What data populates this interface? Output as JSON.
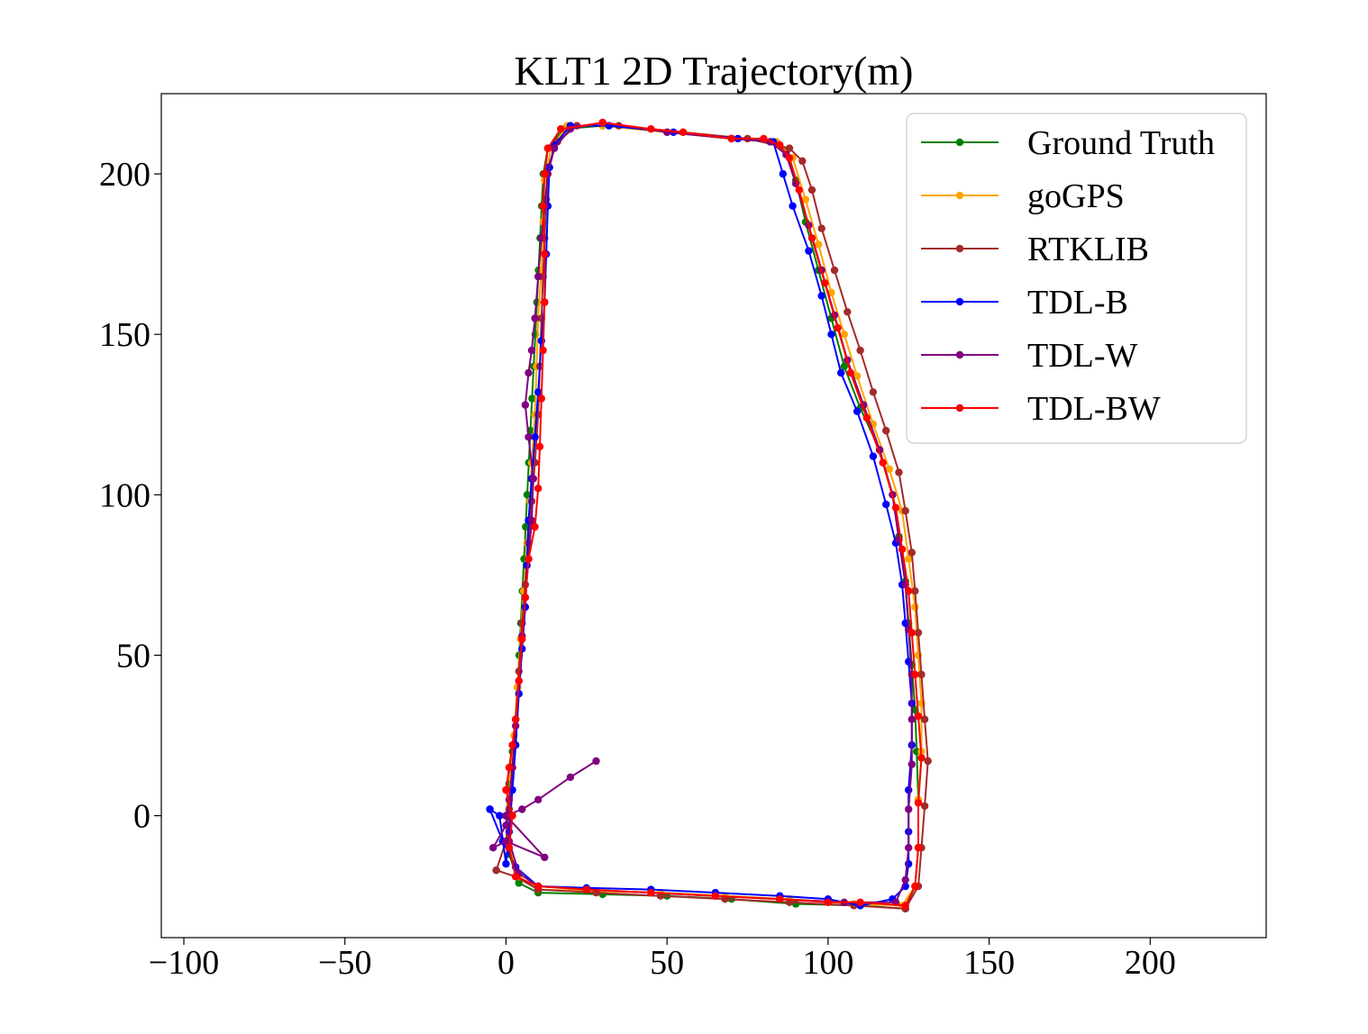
{
  "chart_data": {
    "type": "line",
    "title": "KLT1 2D Trajectory(m)",
    "xlabel": "",
    "ylabel": "",
    "xlim": [
      -107,
      236
    ],
    "ylim": [
      -38,
      225
    ],
    "xticks": [
      -100,
      -50,
      0,
      50,
      100,
      150,
      200
    ],
    "xtick_labels": [
      "−100",
      "−50",
      "0",
      "50",
      "100",
      "150",
      "200"
    ],
    "yticks": [
      0,
      50,
      100,
      150,
      200
    ],
    "ytick_labels": [
      "0",
      "50",
      "100",
      "150",
      "200"
    ],
    "grid": false,
    "legend_position": "upper-right",
    "series": [
      {
        "name": "Ground Truth",
        "color": "#008000",
        "points": [
          [
            0,
            0
          ],
          [
            1,
            10
          ],
          [
            2,
            20
          ],
          [
            3,
            30
          ],
          [
            3.6,
            40
          ],
          [
            4.1,
            50
          ],
          [
            4.6,
            60
          ],
          [
            5.1,
            70
          ],
          [
            5.6,
            80
          ],
          [
            6.1,
            90
          ],
          [
            6.6,
            100
          ],
          [
            7.1,
            110
          ],
          [
            7.6,
            120
          ],
          [
            8.1,
            130
          ],
          [
            8.6,
            140
          ],
          [
            9.1,
            150
          ],
          [
            9.6,
            160
          ],
          [
            10.1,
            170
          ],
          [
            10.6,
            180
          ],
          [
            11.1,
            190
          ],
          [
            11.6,
            200
          ],
          [
            13,
            208
          ],
          [
            18,
            214
          ],
          [
            30,
            215
          ],
          [
            50,
            213
          ],
          [
            70,
            211
          ],
          [
            82,
            210
          ],
          [
            87,
            207
          ],
          [
            90,
            198
          ],
          [
            93,
            185
          ],
          [
            97,
            170
          ],
          [
            101,
            155
          ],
          [
            105,
            140
          ],
          [
            110,
            127
          ],
          [
            116,
            114
          ],
          [
            120,
            100
          ],
          [
            122,
            87
          ],
          [
            124,
            73
          ],
          [
            125,
            60
          ],
          [
            126,
            47
          ],
          [
            127,
            33
          ],
          [
            127.5,
            20
          ],
          [
            128,
            5
          ],
          [
            128,
            -10
          ],
          [
            127,
            -22
          ],
          [
            124,
            -29
          ],
          [
            110,
            -28
          ],
          [
            90,
            -27.5
          ],
          [
            70,
            -26
          ],
          [
            50,
            -25
          ],
          [
            30,
            -24.5
          ],
          [
            10,
            -24
          ],
          [
            4,
            -21
          ],
          [
            1,
            -12
          ],
          [
            0,
            0
          ]
        ]
      },
      {
        "name": "goGPS",
        "color": "#FFA500",
        "points": [
          [
            0,
            0
          ],
          [
            1.5,
            12
          ],
          [
            2.5,
            25
          ],
          [
            3.5,
            40
          ],
          [
            4.5,
            55
          ],
          [
            5.5,
            70
          ],
          [
            6.5,
            85
          ],
          [
            7.5,
            98
          ],
          [
            8,
            110
          ],
          [
            9,
            125
          ],
          [
            9.5,
            140
          ],
          [
            10,
            155
          ],
          [
            11,
            170
          ],
          [
            11.5,
            185
          ],
          [
            12,
            198
          ],
          [
            14,
            208
          ],
          [
            19,
            215
          ],
          [
            30,
            215
          ],
          [
            50,
            213
          ],
          [
            70,
            211
          ],
          [
            84,
            210
          ],
          [
            89,
            205
          ],
          [
            93,
            192
          ],
          [
            97,
            178
          ],
          [
            101,
            163
          ],
          [
            105,
            150
          ],
          [
            109,
            137
          ],
          [
            114,
            122
          ],
          [
            119,
            108
          ],
          [
            123,
            95
          ],
          [
            125,
            80
          ],
          [
            127,
            65
          ],
          [
            128,
            50
          ],
          [
            129,
            35
          ],
          [
            129,
            20
          ],
          [
            128,
            5
          ],
          [
            128,
            -10
          ],
          [
            127,
            -22
          ],
          [
            123,
            -28
          ],
          [
            108,
            -27.5
          ],
          [
            88,
            -26
          ],
          [
            68,
            -25
          ],
          [
            48,
            -24
          ],
          [
            28,
            -23.5
          ],
          [
            10,
            -23
          ],
          [
            4,
            -19
          ],
          [
            1,
            -10
          ],
          [
            0,
            0
          ]
        ]
      },
      {
        "name": "RTKLIB",
        "color": "#A52A2A",
        "points": [
          [
            -3,
            -17
          ],
          [
            0,
            -8
          ],
          [
            1,
            2
          ],
          [
            2,
            15
          ],
          [
            3,
            30
          ],
          [
            4,
            45
          ],
          [
            5,
            60
          ],
          [
            6,
            72
          ],
          [
            7,
            85
          ],
          [
            8,
            98
          ],
          [
            9,
            110
          ],
          [
            10,
            125
          ],
          [
            10.5,
            140
          ],
          [
            11,
            155
          ],
          [
            11.5,
            168
          ],
          [
            12,
            180
          ],
          [
            12.5,
            192
          ],
          [
            13,
            202
          ],
          [
            16,
            210
          ],
          [
            22,
            215
          ],
          [
            35,
            215
          ],
          [
            55,
            213
          ],
          [
            75,
            211
          ],
          [
            88,
            208
          ],
          [
            92,
            204
          ],
          [
            95,
            195
          ],
          [
            98,
            183
          ],
          [
            102,
            170
          ],
          [
            106,
            157
          ],
          [
            110,
            145
          ],
          [
            114,
            132
          ],
          [
            118,
            120
          ],
          [
            122,
            107
          ],
          [
            124,
            95
          ],
          [
            126,
            82
          ],
          [
            127,
            70
          ],
          [
            128,
            57
          ],
          [
            129,
            44
          ],
          [
            130,
            30
          ],
          [
            131,
            17
          ],
          [
            130,
            3
          ],
          [
            129,
            -10
          ],
          [
            128,
            -22
          ],
          [
            124,
            -29
          ],
          [
            108,
            -28
          ],
          [
            88,
            -27
          ],
          [
            68,
            -26
          ],
          [
            48,
            -25
          ],
          [
            28,
            -24
          ],
          [
            10,
            -23
          ],
          [
            3,
            -19
          ],
          [
            -3,
            -17
          ]
        ]
      },
      {
        "name": "TDL-B",
        "color": "#0000FF",
        "points": [
          [
            -5,
            2
          ],
          [
            -2,
            0
          ],
          [
            0,
            -15
          ],
          [
            1,
            -5
          ],
          [
            2,
            8
          ],
          [
            3,
            22
          ],
          [
            4,
            38
          ],
          [
            5,
            52
          ],
          [
            6,
            65
          ],
          [
            6.5,
            78
          ],
          [
            7,
            92
          ],
          [
            8,
            105
          ],
          [
            9,
            118
          ],
          [
            10,
            132
          ],
          [
            11,
            148
          ],
          [
            12,
            160
          ],
          [
            12.5,
            175
          ],
          [
            13,
            190
          ],
          [
            13.5,
            202
          ],
          [
            15,
            209
          ],
          [
            20,
            215
          ],
          [
            32,
            215
          ],
          [
            52,
            213
          ],
          [
            72,
            211
          ],
          [
            83,
            210
          ],
          [
            86,
            200
          ],
          [
            89,
            190
          ],
          [
            94,
            176
          ],
          [
            98,
            162
          ],
          [
            101,
            150
          ],
          [
            104,
            138
          ],
          [
            109,
            126
          ],
          [
            114,
            112
          ],
          [
            118,
            97
          ],
          [
            121,
            85
          ],
          [
            123,
            72
          ],
          [
            124,
            60
          ],
          [
            125,
            48
          ],
          [
            126,
            35
          ],
          [
            126,
            22
          ],
          [
            125,
            8
          ],
          [
            125,
            -5
          ],
          [
            125,
            -15
          ],
          [
            124,
            -22
          ],
          [
            120,
            -26
          ],
          [
            110,
            -28
          ],
          [
            100,
            -26
          ],
          [
            85,
            -25
          ],
          [
            65,
            -24
          ],
          [
            45,
            -23
          ],
          [
            25,
            -22.5
          ],
          [
            10,
            -22
          ],
          [
            3,
            -16
          ],
          [
            -1,
            -8
          ],
          [
            -5,
            2
          ]
        ]
      },
      {
        "name": "TDL-W",
        "color": "#800080",
        "points": [
          [
            28,
            17
          ],
          [
            20,
            12
          ],
          [
            10,
            5
          ],
          [
            5,
            2
          ],
          [
            0,
            0
          ],
          [
            12,
            -13
          ],
          [
            0,
            -8
          ],
          [
            -4,
            -10
          ],
          [
            0,
            -3
          ],
          [
            1,
            5
          ],
          [
            2,
            15
          ],
          [
            3,
            28
          ],
          [
            4,
            42
          ],
          [
            5,
            56
          ],
          [
            6,
            68
          ],
          [
            7,
            80
          ],
          [
            8,
            92
          ],
          [
            8.5,
            105
          ],
          [
            7,
            118
          ],
          [
            6,
            128
          ],
          [
            7,
            138
          ],
          [
            8,
            145
          ],
          [
            9,
            155
          ],
          [
            10,
            168
          ],
          [
            11,
            180
          ],
          [
            12,
            190
          ],
          [
            13,
            200
          ],
          [
            15,
            208
          ],
          [
            20,
            214
          ],
          [
            30,
            216
          ],
          [
            50,
            213
          ],
          [
            70,
            211
          ],
          [
            82,
            210
          ],
          [
            87,
            206
          ],
          [
            90,
            197
          ],
          [
            94,
            184
          ],
          [
            98,
            170
          ],
          [
            102,
            156
          ],
          [
            106,
            142
          ],
          [
            111,
            128
          ],
          [
            116,
            114
          ],
          [
            120,
            100
          ],
          [
            122,
            86
          ],
          [
            124,
            72
          ],
          [
            125,
            58
          ],
          [
            126,
            44
          ],
          [
            126,
            30
          ],
          [
            126,
            16
          ],
          [
            125,
            2
          ],
          [
            125,
            -10
          ],
          [
            124,
            -20
          ],
          [
            121,
            -27
          ],
          [
            105,
            -27
          ],
          [
            85,
            -26
          ],
          [
            65,
            -25
          ],
          [
            45,
            -24
          ],
          [
            25,
            -23
          ],
          [
            10,
            -22
          ],
          [
            4,
            -18
          ],
          [
            1,
            -8
          ],
          [
            0,
            0
          ]
        ]
      },
      {
        "name": "TDL-BW",
        "color": "#FF0000",
        "points": [
          [
            0,
            8
          ],
          [
            1,
            15
          ],
          [
            2,
            22
          ],
          [
            3,
            30
          ],
          [
            4,
            42
          ],
          [
            5,
            55
          ],
          [
            6,
            68
          ],
          [
            7,
            80
          ],
          [
            9,
            90
          ],
          [
            10,
            102
          ],
          [
            10.5,
            115
          ],
          [
            11,
            130
          ],
          [
            11.5,
            145
          ],
          [
            12,
            160
          ],
          [
            12,
            175
          ],
          [
            11.5,
            190
          ],
          [
            12,
            200
          ],
          [
            13,
            208
          ],
          [
            17,
            214
          ],
          [
            30,
            216
          ],
          [
            45,
            214
          ],
          [
            55,
            213
          ],
          [
            70,
            211
          ],
          [
            80,
            211
          ],
          [
            85,
            209
          ],
          [
            88,
            205
          ],
          [
            91,
            195
          ],
          [
            95,
            180
          ],
          [
            99,
            166
          ],
          [
            103,
            152
          ],
          [
            107,
            138
          ],
          [
            112,
            124
          ],
          [
            117,
            110
          ],
          [
            121,
            96
          ],
          [
            123,
            83
          ],
          [
            125,
            70
          ],
          [
            126,
            57
          ],
          [
            127,
            44
          ],
          [
            128,
            31
          ],
          [
            129,
            18
          ],
          [
            128,
            4
          ],
          [
            128,
            -10
          ],
          [
            127,
            -22
          ],
          [
            124,
            -28
          ],
          [
            110,
            -27
          ],
          [
            100,
            -27
          ],
          [
            85,
            -26
          ],
          [
            65,
            -25
          ],
          [
            45,
            -24
          ],
          [
            25,
            -23
          ],
          [
            10,
            -22
          ],
          [
            3,
            -19
          ],
          [
            1,
            -10
          ],
          [
            2,
            0
          ],
          [
            0,
            8
          ]
        ]
      }
    ]
  }
}
